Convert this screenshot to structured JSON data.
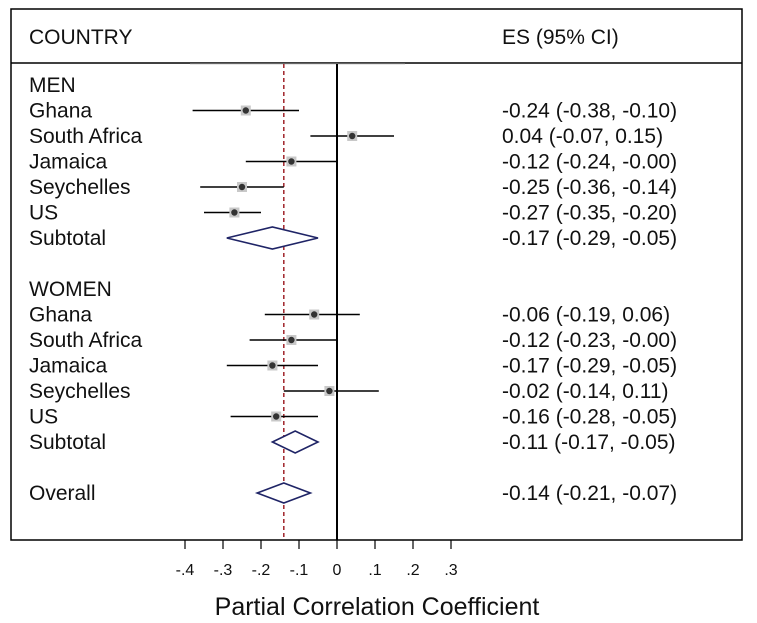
{
  "chart_data": {
    "type": "forest",
    "title": "",
    "xlabel": "Partial Correlation Coefficient",
    "header": {
      "left": "COUNTRY",
      "right": "ES (95% CI)"
    },
    "xticks": [
      {
        "value": -0.4,
        "label": "-.4"
      },
      {
        "value": -0.3,
        "label": "-.3"
      },
      {
        "value": -0.2,
        "label": "-.2"
      },
      {
        "value": -0.1,
        "label": "-.1"
      },
      {
        "value": 0,
        "label": "0"
      },
      {
        "value": 0.1,
        "label": ".1"
      },
      {
        "value": 0.2,
        "label": ".2"
      },
      {
        "value": 0.3,
        "label": ".3"
      }
    ],
    "xlim": [
      -0.4,
      0.3
    ],
    "reference_line": 0,
    "overall_line": -0.14,
    "colors": {
      "overall_line": "#a0242a",
      "diamond": "#1f2466",
      "point": "#333333",
      "ci_line": "#000000"
    },
    "rows": [
      {
        "kind": "header",
        "label": "MEN"
      },
      {
        "kind": "study",
        "label": "Ghana",
        "es": -0.24,
        "lo": -0.38,
        "hi": -0.1,
        "text": "-0.24 (-0.38, -0.10)"
      },
      {
        "kind": "study",
        "label": "South Africa",
        "es": 0.04,
        "lo": -0.07,
        "hi": 0.15,
        "text": "0.04 (-0.07, 0.15)"
      },
      {
        "kind": "study",
        "label": "Jamaica",
        "es": -0.12,
        "lo": -0.24,
        "hi": -0.0,
        "text": "-0.12 (-0.24, -0.00)"
      },
      {
        "kind": "study",
        "label": "Seychelles",
        "es": -0.25,
        "lo": -0.36,
        "hi": -0.14,
        "text": "-0.25 (-0.36, -0.14)"
      },
      {
        "kind": "study",
        "label": "US",
        "es": -0.27,
        "lo": -0.35,
        "hi": -0.2,
        "text": "-0.27 (-0.35, -0.20)"
      },
      {
        "kind": "subtotal",
        "label": "Subtotal",
        "es": -0.17,
        "lo": -0.29,
        "hi": -0.05,
        "text": "-0.17 (-0.29, -0.05)"
      },
      {
        "kind": "spacer"
      },
      {
        "kind": "header",
        "label": "WOMEN"
      },
      {
        "kind": "study",
        "label": "Ghana",
        "es": -0.06,
        "lo": -0.19,
        "hi": 0.06,
        "text": "-0.06 (-0.19, 0.06)"
      },
      {
        "kind": "study",
        "label": "South Africa",
        "es": -0.12,
        "lo": -0.23,
        "hi": -0.0,
        "text": "-0.12 (-0.23, -0.00)"
      },
      {
        "kind": "study",
        "label": "Jamaica",
        "es": -0.17,
        "lo": -0.29,
        "hi": -0.05,
        "text": "-0.17 (-0.29, -0.05)"
      },
      {
        "kind": "study",
        "label": "Seychelles",
        "es": -0.02,
        "lo": -0.14,
        "hi": 0.11,
        "text": "-0.02 (-0.14, 0.11)"
      },
      {
        "kind": "study",
        "label": "US",
        "es": -0.16,
        "lo": -0.28,
        "hi": -0.05,
        "text": "-0.16 (-0.28, -0.05)"
      },
      {
        "kind": "subtotal",
        "label": "Subtotal",
        "es": -0.11,
        "lo": -0.17,
        "hi": -0.05,
        "text": "-0.11 (-0.17, -0.05)"
      },
      {
        "kind": "spacer"
      },
      {
        "kind": "overall",
        "label": "Overall",
        "es": -0.14,
        "lo": -0.21,
        "hi": -0.07,
        "text": "-0.14 (-0.21, -0.07)"
      }
    ]
  }
}
